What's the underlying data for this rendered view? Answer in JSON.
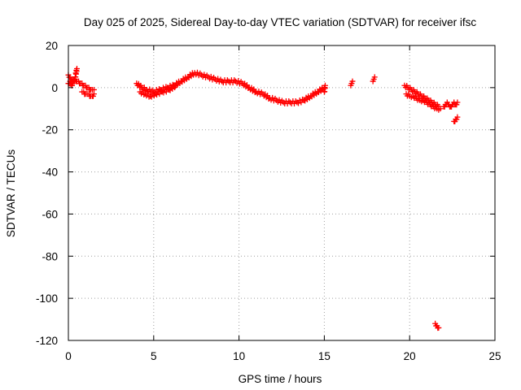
{
  "chart_data": {
    "type": "scatter",
    "title": "Day 025 of 2025, Sidereal Day-to-day VTEC variation (SDTVAR) for receiver ifsc",
    "xlabel": "GPS time / hours",
    "ylabel": "SDTVAR / TECUs",
    "xlim": [
      0,
      25
    ],
    "ylim": [
      -120,
      20
    ],
    "xticks": [
      0,
      5,
      10,
      15,
      20,
      25
    ],
    "yticks": [
      -120,
      -100,
      -80,
      -60,
      -40,
      -20,
      0,
      20
    ],
    "xtick_labels": [
      "0",
      "5",
      "10",
      "15",
      "20",
      "25"
    ],
    "ytick_labels": [
      "-120",
      "-100",
      "-80",
      "-60",
      "-40",
      "-20",
      "0",
      "20"
    ],
    "grid": true,
    "marker": "plus",
    "color": "#ff0000",
    "series": [
      {
        "name": "SDTVAR",
        "segments": [
          {
            "x": [
              0.0,
              0.1,
              0.2,
              0.3,
              0.4,
              0.5,
              0.6,
              0.7,
              0.8,
              0.9,
              1.0,
              1.1,
              1.2,
              1.3,
              1.4,
              1.5
            ],
            "y": [
              6,
              5,
              4,
              3,
              4,
              3,
              3,
              2,
              2,
              1,
              1,
              0,
              0,
              -1,
              -1,
              -1
            ]
          },
          {
            "x": [
              0.0,
              0.1,
              0.2,
              0.3,
              0.4,
              0.5
            ],
            "y": [
              2,
              3,
              1,
              4,
              5,
              9
            ]
          },
          {
            "x": [
              0.8,
              0.9,
              1.0,
              1.1,
              1.2,
              1.3,
              1.4,
              1.5
            ],
            "y": [
              -2,
              -2,
              -3,
              -3,
              -3,
              -4,
              -4,
              -3
            ]
          },
          {
            "x": [
              4.0,
              4.3,
              4.6,
              5.0,
              5.4,
              5.8,
              6.2,
              6.6,
              7.0,
              7.4,
              7.8,
              8.2,
              8.6,
              9.0,
              9.4,
              9.8,
              10.2,
              10.6,
              11.0,
              11.4,
              11.8,
              12.2,
              12.6,
              13.0,
              13.4,
              13.8,
              14.2,
              14.6,
              15.0
            ],
            "y": [
              2,
              0,
              -1,
              -2,
              -1,
              0,
              1,
              3,
              5,
              7,
              6,
              5,
              4,
              3,
              3,
              3,
              2,
              0,
              -2,
              -3,
              -5,
              -6,
              -7,
              -7,
              -7,
              -6,
              -4,
              -2,
              0
            ]
          },
          {
            "x": [
              4.2,
              4.5,
              4.8,
              5.1,
              5.5,
              5.9,
              6.3
            ],
            "y": [
              -2,
              -3,
              -4,
              -3,
              -2,
              -1,
              1
            ]
          },
          {
            "x": [
              15.0,
              15.05
            ],
            "y": [
              -2,
              1
            ]
          },
          {
            "x": [
              16.55,
              16.6,
              16.65
            ],
            "y": [
              1,
              2,
              3
            ]
          },
          {
            "x": [
              17.85,
              17.9,
              17.95
            ],
            "y": [
              3,
              4,
              5
            ]
          },
          {
            "x": [
              19.7,
              19.9,
              20.1,
              20.3,
              20.5,
              20.7,
              20.9,
              21.1,
              21.3,
              21.5,
              21.7
            ],
            "y": [
              1,
              0,
              -1,
              -2,
              -3,
              -4,
              -5,
              -6,
              -7,
              -8,
              -9
            ]
          },
          {
            "x": [
              19.8,
              20.0,
              20.2,
              20.4,
              20.6,
              20.8,
              21.0,
              21.2,
              21.4,
              21.6,
              21.8
            ],
            "y": [
              -3,
              -4,
              -4,
              -5,
              -6,
              -6,
              -7,
              -8,
              -9,
              -10,
              -10
            ]
          },
          {
            "x": [
              22.0,
              22.1,
              22.2,
              22.3,
              22.4,
              22.5,
              22.6,
              22.7,
              22.8
            ],
            "y": [
              -9,
              -8,
              -7,
              -8,
              -9,
              -8,
              -7,
              -8,
              -7
            ]
          },
          {
            "x": [
              22.6,
              22.7,
              22.8
            ],
            "y": [
              -16,
              -15,
              -14
            ]
          },
          {
            "x": [
              21.5,
              21.6,
              21.7
            ],
            "y": [
              -112,
              -113,
              -114
            ]
          }
        ]
      }
    ]
  }
}
